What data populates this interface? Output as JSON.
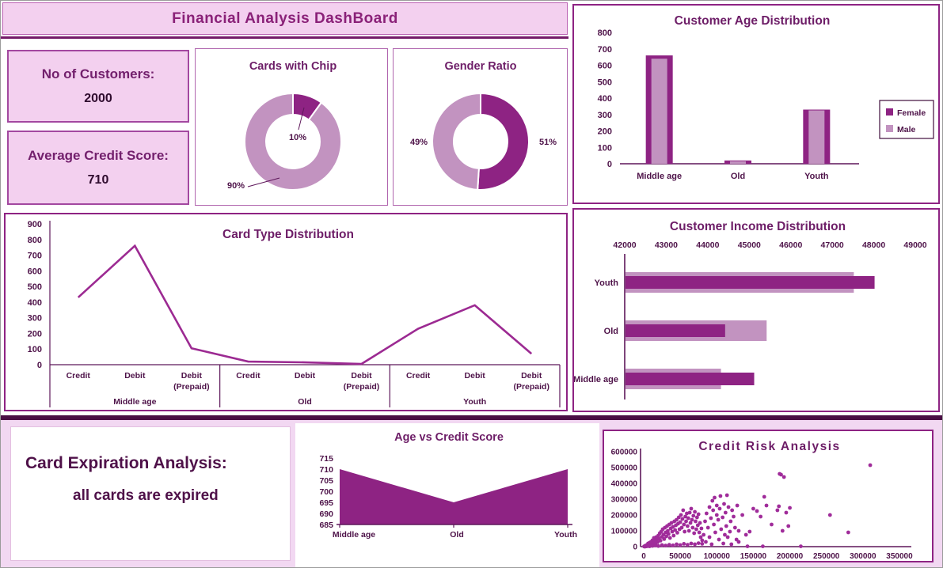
{
  "title": "Financial Analysis DashBoard",
  "colors": {
    "dark": "#8E2383",
    "light": "#C293C0",
    "line": "#9C2A92",
    "scatter": "#A02C9A",
    "axis_text": "#4E1349",
    "axis": "#5E175A",
    "chart_title": "#6D1D67",
    "page_title": "#8A2178",
    "separator": "#4A0E44"
  },
  "kpis": [
    {
      "label": "No of Customers:",
      "value": "2000"
    },
    {
      "label": "Average Credit Score:",
      "value": "710"
    }
  ],
  "expiration_note": {
    "heading": "Card Expiration Analysis:",
    "detail": "all cards are expired"
  },
  "chart_data": [
    {
      "id": "chip",
      "type": "donut",
      "title": "Cards with Chip",
      "slices": [
        {
          "label": "10%",
          "value": 10,
          "color": "dark"
        },
        {
          "label": "90%",
          "value": 90,
          "color": "light"
        }
      ]
    },
    {
      "id": "gender",
      "type": "donut",
      "title": "Gender Ratio",
      "slices": [
        {
          "label": "51%",
          "value": 51,
          "color": "dark"
        },
        {
          "label": "49%",
          "value": 49,
          "color": "light"
        }
      ]
    },
    {
      "id": "age",
      "type": "bar",
      "title": "Customer Age Distribution",
      "categories": [
        "Middle age",
        "Old",
        "Youth"
      ],
      "series": [
        {
          "name": "Female",
          "color": "dark",
          "values": [
            660,
            20,
            330
          ]
        },
        {
          "name": "Male",
          "color": "light",
          "values": [
            640,
            15,
            325
          ]
        }
      ],
      "ylim": [
        0,
        800
      ],
      "ytick_step": 100,
      "legend_position": "right"
    },
    {
      "id": "cardtype",
      "type": "line",
      "title": "Card  Type Distribution",
      "group_labels": [
        "Middle age",
        "Old",
        "Youth"
      ],
      "categories": [
        "Credit",
        "Debit",
        "Debit (Prepaid)",
        "Credit",
        "Debit",
        "Debit (Prepaid)",
        "Credit",
        "Debit",
        "Debit (Prepaid)"
      ],
      "values": [
        430,
        760,
        105,
        20,
        15,
        5,
        230,
        380,
        70
      ],
      "ylim": [
        0,
        900
      ],
      "ytick_step": 100
    },
    {
      "id": "income",
      "type": "hbar",
      "title": "Customer Income Distribution",
      "categories": [
        "Youth",
        "Old",
        "Middle age"
      ],
      "series": [
        {
          "name": "back-light",
          "color": "light",
          "values": [
            47500,
            45400,
            44300
          ]
        },
        {
          "name": "front-dark",
          "color": "dark",
          "values": [
            48000,
            44400,
            45100
          ]
        }
      ],
      "xlim": [
        42000,
        49000
      ],
      "xtick_step": 1000
    },
    {
      "id": "agescore",
      "type": "area",
      "title": "Age vs Credit Score",
      "categories": [
        "Middle age",
        "Old",
        "Youth"
      ],
      "values": [
        710,
        695,
        710
      ],
      "ylim": [
        685,
        715
      ],
      "ytick_step": 5
    },
    {
      "id": "risk",
      "type": "scatter",
      "title": "Credit Risk Analysis",
      "xlim": [
        0,
        350000
      ],
      "xtick_step": 50000,
      "ylim": [
        0,
        600000
      ],
      "ytick_step": 100000,
      "points": [
        [
          500,
          1000
        ],
        [
          1500,
          500
        ],
        [
          3000,
          1500
        ],
        [
          1000,
          2000
        ],
        [
          2000,
          5000
        ],
        [
          2000,
          1000
        ],
        [
          3000,
          8000
        ],
        [
          4000,
          3000
        ],
        [
          5000,
          12000
        ],
        [
          5000,
          3000
        ],
        [
          6000,
          20000
        ],
        [
          7000,
          9000
        ],
        [
          8000,
          25000
        ],
        [
          8000,
          2000
        ],
        [
          9000,
          15000
        ],
        [
          10000,
          30000
        ],
        [
          11000,
          6000
        ],
        [
          12000,
          40000
        ],
        [
          12000,
          5000
        ],
        [
          13000,
          22000
        ],
        [
          14000,
          55000
        ],
        [
          15000,
          35000
        ],
        [
          16000,
          18000
        ],
        [
          16000,
          8000
        ],
        [
          17000,
          60000
        ],
        [
          18000,
          45000
        ],
        [
          19000,
          28000
        ],
        [
          20000,
          70000
        ],
        [
          20000,
          4000
        ],
        [
          21000,
          50000
        ],
        [
          22000,
          85000
        ],
        [
          23000,
          38000
        ],
        [
          24000,
          95000
        ],
        [
          25000,
          62000
        ],
        [
          25000,
          10000
        ],
        [
          26000,
          110000
        ],
        [
          27000,
          75000
        ],
        [
          28000,
          48000
        ],
        [
          29000,
          120000
        ],
        [
          30000,
          90000
        ],
        [
          30000,
          7000
        ],
        [
          31000,
          65000
        ],
        [
          32000,
          130000
        ],
        [
          33000,
          100000
        ],
        [
          34000,
          80000
        ],
        [
          35000,
          140000
        ],
        [
          35000,
          12000
        ],
        [
          36000,
          55000
        ],
        [
          37000,
          115000
        ],
        [
          38000,
          150000
        ],
        [
          39000,
          95000
        ],
        [
          40000,
          125000
        ],
        [
          40000,
          8000
        ],
        [
          41000,
          70000
        ],
        [
          42000,
          160000
        ],
        [
          43000,
          105000
        ],
        [
          44000,
          135000
        ],
        [
          45000,
          170000
        ],
        [
          45000,
          15000
        ],
        [
          46000,
          88000
        ],
        [
          47000,
          145000
        ],
        [
          48000,
          185000
        ],
        [
          49000,
          110000
        ],
        [
          50000,
          155000
        ],
        [
          50000,
          10000
        ],
        [
          51000,
          200000
        ],
        [
          52000,
          120000
        ],
        [
          53000,
          175000
        ],
        [
          54000,
          230000
        ],
        [
          55000,
          140000
        ],
        [
          55000,
          18000
        ],
        [
          56000,
          95000
        ],
        [
          57000,
          190000
        ],
        [
          58000,
          160000
        ],
        [
          59000,
          210000
        ],
        [
          60000,
          130000
        ],
        [
          60000,
          12000
        ],
        [
          61000,
          180000
        ],
        [
          62000,
          100000
        ],
        [
          63000,
          215000
        ],
        [
          64000,
          150000
        ],
        [
          65000,
          240000
        ],
        [
          65000,
          20000
        ],
        [
          66000,
          170000
        ],
        [
          67000,
          120000
        ],
        [
          68000,
          195000
        ],
        [
          69000,
          85000
        ],
        [
          70000,
          220000
        ],
        [
          70000,
          15000
        ],
        [
          71000,
          160000
        ],
        [
          72000,
          110000
        ],
        [
          73000,
          185000
        ],
        [
          74000,
          135000
        ],
        [
          75000,
          205000
        ],
        [
          75000,
          22000
        ],
        [
          76000,
          90000
        ],
        [
          77000,
          150000
        ],
        [
          78000,
          60000
        ],
        [
          79000,
          115000
        ],
        [
          80000,
          40000
        ],
        [
          80000,
          18000
        ],
        [
          82000,
          75000
        ],
        [
          84000,
          160000
        ],
        [
          85000,
          30000
        ],
        [
          86000,
          210000
        ],
        [
          88000,
          120000
        ],
        [
          90000,
          250000
        ],
        [
          90000,
          60000
        ],
        [
          92000,
          180000
        ],
        [
          93000,
          15000
        ],
        [
          94000,
          290000
        ],
        [
          95000,
          230000
        ],
        [
          96000,
          140000
        ],
        [
          97000,
          310000
        ],
        [
          98000,
          90000
        ],
        [
          100000,
          200000
        ],
        [
          100000,
          260000
        ],
        [
          102000,
          170000
        ],
        [
          103000,
          45000
        ],
        [
          104000,
          240000
        ],
        [
          105000,
          320000
        ],
        [
          106000,
          110000
        ],
        [
          108000,
          185000
        ],
        [
          109000,
          20000
        ],
        [
          110000,
          270000
        ],
        [
          111000,
          75000
        ],
        [
          112000,
          215000
        ],
        [
          113000,
          130000
        ],
        [
          114000,
          325000
        ],
        [
          115000,
          60000
        ],
        [
          116000,
          250000
        ],
        [
          118000,
          95000
        ],
        [
          119000,
          160000
        ],
        [
          120000,
          15000
        ],
        [
          121000,
          230000
        ],
        [
          123000,
          190000
        ],
        [
          125000,
          120000
        ],
        [
          127000,
          45000
        ],
        [
          128000,
          260000
        ],
        [
          130000,
          100000
        ],
        [
          130000,
          30000
        ],
        [
          135000,
          200000
        ],
        [
          140000,
          75000
        ],
        [
          142000,
          2000
        ],
        [
          145000,
          95000
        ],
        [
          150000,
          240000
        ],
        [
          155000,
          225000
        ],
        [
          160000,
          190000
        ],
        [
          163000,
          2000
        ],
        [
          165000,
          315000
        ],
        [
          168000,
          260000
        ],
        [
          175000,
          140000
        ],
        [
          183000,
          230000
        ],
        [
          185000,
          255000
        ],
        [
          186000,
          460000
        ],
        [
          188000,
          455000
        ],
        [
          190000,
          100000
        ],
        [
          192000,
          440000
        ],
        [
          195000,
          215000
        ],
        [
          198000,
          130000
        ],
        [
          200000,
          245000
        ],
        [
          215000,
          2000
        ],
        [
          255000,
          200000
        ],
        [
          280000,
          90000
        ],
        [
          310000,
          515000
        ]
      ]
    }
  ]
}
